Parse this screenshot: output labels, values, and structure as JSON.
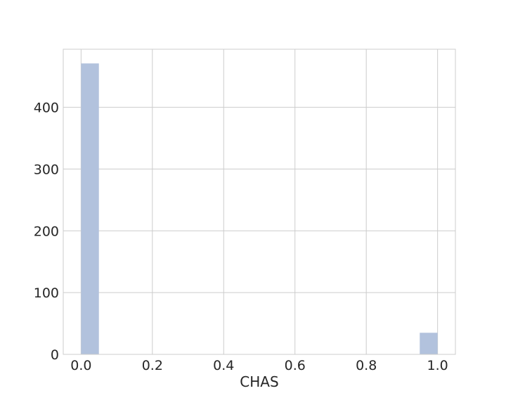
{
  "chart_data": {
    "type": "bar",
    "title": "",
    "xlabel": "CHAS",
    "ylabel": "",
    "xlim": [
      -0.05,
      1.05
    ],
    "ylim": [
      0,
      494
    ],
    "x_ticks": [
      "0.0",
      "0.2",
      "0.4",
      "0.6",
      "0.8",
      "1.0"
    ],
    "y_ticks": [
      "0",
      "100",
      "200",
      "300",
      "400"
    ],
    "grid": true,
    "bins": [
      {
        "x0": 0.0,
        "x1": 0.05,
        "value": 471
      },
      {
        "x0": 0.95,
        "x1": 1.0,
        "value": 35
      }
    ],
    "bar_color": "#b2c2dd"
  }
}
